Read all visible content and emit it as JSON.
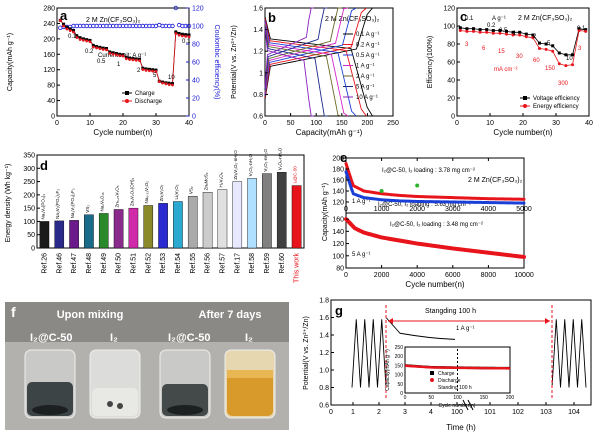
{
  "panels": {
    "a": {
      "letter": "a",
      "title": "2 M Zn(CF₃SO₃)₂",
      "note": "Current unit: A g⁻¹",
      "ylabel": "Capacity(mAh g⁻¹)",
      "y2label": "Coulombic efficiency(%)",
      "xlabel": "Cycle number(n)",
      "rate_labels": [
        "0.1",
        "0.2",
        "0.5",
        "1",
        "2",
        "5",
        "10",
        "0.1"
      ],
      "legend": [
        "Charge",
        "Discharge"
      ]
    },
    "b": {
      "letter": "b",
      "title": "2 M Zn(CF₃SO₃)₂",
      "ylabel": "Potential(V vs. Zn²⁺/Zn)",
      "xlabel": "Capacity(mAh g⁻¹)",
      "legend": [
        "0.1 A g⁻¹",
        "0.2 A g⁻¹",
        "0.5 A g⁻¹",
        "1 A g⁻¹",
        "2 A g⁻¹",
        "5 A g⁻¹",
        "10 A g⁻¹"
      ]
    },
    "c": {
      "letter": "c",
      "title": "2 M Zn(CF₃SO₃)₂",
      "unit_top": "A g⁻¹",
      "unit_bottom": "mA cm⁻²",
      "ylabel": "Efficiency(100%)",
      "xlabel": "Cycle number(n)",
      "legend": [
        "Voltage efficiency",
        "Energy efficiency"
      ]
    },
    "d": {
      "letter": "d",
      "ylabel": "Energy density (Wh kg⁻¹)",
      "this_work": "This work",
      "this_work_bar": "I₂@C-50"
    },
    "e": {
      "letter": "e",
      "title": "2 M Zn(CF₃SO₃)₂",
      "ylabel": "Capacity(mAh g⁻¹)",
      "xlabel": "Cycle number(n)",
      "ann1": "I₂@C-50,  I₂ loading : 3.78 mg cm⁻²",
      "ann2": "I₂@C-50,  I₂ loading : 5.63 mg cm⁻²",
      "ann3": "I₂@C-50,  I₂ loading : 3.48 mg cm⁻²",
      "rate1": "1 A g⁻¹",
      "rate2": "5 A g⁻¹"
    },
    "f": {
      "letter": "f",
      "left_title": "Upon mixing",
      "right_title": "After 7 days",
      "vials": [
        "I₂@C-50",
        "I₂",
        "I₂@C-50",
        "I₂"
      ]
    },
    "g": {
      "letter": "g",
      "ylabel": "Potential(V vs. Zn²⁺/Zn)",
      "xlabel": "Time (h)",
      "standing": "Stangding 100 h",
      "rate": "1 A g⁻¹",
      "inset_ylabel": "Capacity(mAh g⁻¹)",
      "inset_xlabel": "Cycle number(n)",
      "inset_legend": [
        "Charge",
        "Discharge",
        "Standing 100 h"
      ]
    }
  },
  "colors": {
    "charge": "#000000",
    "discharge": "#e8141b",
    "ce": "#1b1bd8",
    "bar": "#1a1a1a",
    "this_work": "#e8141b",
    "blue_scatter": "#1a3fd6",
    "red_scatter": "#e8141b"
  },
  "chart_data": [
    {
      "panel": "a",
      "type": "scatter",
      "title": "",
      "xlabel": "Cycle number(n)",
      "ylabel": "Capacity(mAh g⁻¹)",
      "y2label": "Coulombic efficiency(%)",
      "xlim": [
        0,
        40
      ],
      "ylim": [
        0,
        280
      ],
      "y2lim": [
        0,
        120
      ],
      "xticks": [
        0,
        10,
        20,
        30,
        40
      ],
      "yticks": [
        0,
        40,
        80,
        120,
        160,
        200,
        240,
        280
      ],
      "y2ticks": [
        0,
        20,
        40,
        60,
        80,
        100,
        120
      ],
      "series": [
        {
          "name": "Charge",
          "x": [
            1,
            2,
            3,
            4,
            5,
            6,
            7,
            8,
            9,
            10,
            11,
            12,
            13,
            14,
            15,
            16,
            17,
            18,
            19,
            20,
            21,
            22,
            23,
            24,
            25,
            26,
            27,
            28,
            29,
            30,
            31,
            32,
            33,
            34,
            35,
            36,
            37,
            38,
            39,
            40
          ],
          "values": [
            248,
            238,
            230,
            226,
            222,
            208,
            203,
            200,
            198,
            196,
            183,
            180,
            178,
            176,
            175,
            166,
            164,
            162,
            160,
            159,
            152,
            150,
            149,
            148,
            147,
            124,
            122,
            121,
            120,
            119,
            90,
            88,
            86,
            85,
            84,
            218,
            214,
            212,
            211,
            210
          ]
        },
        {
          "name": "Discharge",
          "x": [
            1,
            2,
            3,
            4,
            5,
            6,
            7,
            8,
            9,
            10,
            11,
            12,
            13,
            14,
            15,
            16,
            17,
            18,
            19,
            20,
            21,
            22,
            23,
            24,
            25,
            26,
            27,
            28,
            29,
            30,
            31,
            32,
            33,
            34,
            35,
            36,
            37,
            38,
            39,
            40
          ],
          "values": [
            250,
            236,
            228,
            224,
            220,
            206,
            201,
            199,
            197,
            195,
            181,
            179,
            177,
            175,
            174,
            165,
            163,
            161,
            159,
            158,
            151,
            149,
            148,
            147,
            146,
            123,
            121,
            120,
            119,
            118,
            92,
            88,
            86,
            84,
            83,
            216,
            212,
            210,
            209,
            208
          ]
        },
        {
          "name": "Coulombic efficiency",
          "axis": "right",
          "x": [
            1,
            2,
            3,
            4,
            5,
            6,
            7,
            8,
            9,
            10,
            11,
            12,
            13,
            14,
            15,
            16,
            17,
            18,
            19,
            20,
            21,
            22,
            23,
            24,
            25,
            26,
            27,
            28,
            29,
            30,
            31,
            32,
            33,
            34,
            35,
            36,
            37,
            38,
            39,
            40
          ],
          "values": [
            98,
            99,
            99,
            99,
            100,
            100,
            100,
            100,
            100,
            100,
            100,
            100,
            100,
            100,
            100,
            100,
            100,
            100,
            100,
            100,
            100,
            100,
            100,
            100,
            100,
            100,
            100,
            100,
            100,
            100,
            101,
            100,
            100,
            100,
            100,
            120,
            101,
            100,
            100,
            100
          ]
        }
      ]
    },
    {
      "panel": "b",
      "type": "line",
      "title": "",
      "xlabel": "Capacity(mAh g⁻¹)",
      "ylabel": "Potential(V vs. Zn²⁺/Zn)",
      "xlim": [
        0,
        250
      ],
      "ylim": [
        0.6,
        1.6
      ],
      "xticks": [
        0,
        50,
        100,
        150,
        200,
        250
      ],
      "yticks": [
        0.6,
        0.8,
        1.0,
        1.2,
        1.4,
        1.6
      ],
      "series": [
        {
          "name": "0.1 A g⁻¹",
          "color": "#000000",
          "capacity": 210
        },
        {
          "name": "0.2 A g⁻¹",
          "color": "#e8141b",
          "capacity": 198
        },
        {
          "name": "0.5 A g⁻¹",
          "color": "#1a3fd6",
          "capacity": 178
        },
        {
          "name": "1 A g⁻¹",
          "color": "#d628c8",
          "capacity": 162
        },
        {
          "name": "2 A g⁻¹",
          "color": "#6a6a2a",
          "capacity": 150
        },
        {
          "name": "5 A g⁻¹",
          "color": "#1d2a8c",
          "capacity": 122
        },
        {
          "name": "10 A g⁻¹",
          "color": "#8a1fbf",
          "capacity": 95
        }
      ]
    },
    {
      "panel": "c",
      "type": "scatter",
      "title": "",
      "xlabel": "Cycle number(n)",
      "ylabel": "Efficiency(100%)",
      "xlim": [
        0,
        40
      ],
      "ylim": [
        0,
        120
      ],
      "xticks": [
        0,
        10,
        20,
        30,
        40
      ],
      "yticks": [
        0,
        20,
        40,
        60,
        80,
        100,
        120
      ],
      "rate_labels_top": [
        "0.1",
        "0.2",
        "0.5",
        "1",
        "2",
        "5",
        "10",
        "0.1"
      ],
      "rate_labels_bottom": [
        "3",
        "6",
        "15",
        "30",
        "60",
        "150",
        "300",
        "3"
      ],
      "series": [
        {
          "name": "Voltage efficiency",
          "x": [
            1,
            3,
            5,
            7,
            9,
            11,
            13,
            15,
            17,
            19,
            21,
            23,
            25,
            27,
            29,
            31,
            33,
            35,
            37,
            39
          ],
          "values": [
            98,
            97,
            97,
            96,
            96,
            95,
            95,
            94,
            93,
            93,
            91,
            90,
            81,
            80,
            78,
            70,
            68,
            68,
            97,
            96
          ]
        },
        {
          "name": "Energy efficiency",
          "x": [
            1,
            3,
            5,
            7,
            9,
            11,
            13,
            15,
            17,
            19,
            21,
            23,
            25,
            27,
            29,
            31,
            33,
            35,
            37,
            39
          ],
          "values": [
            95,
            94,
            94,
            93,
            93,
            92,
            92,
            91,
            90,
            90,
            88,
            87,
            75,
            74,
            72,
            58,
            56,
            57,
            95,
            94
          ]
        }
      ]
    },
    {
      "panel": "d",
      "type": "bar",
      "title": "",
      "ylabel": "Energy density (Wh kg⁻¹)",
      "ylim": [
        0,
        350
      ],
      "yticks": [
        0,
        50,
        100,
        150,
        200,
        250,
        300,
        350
      ],
      "categories": [
        "Ref.26",
        "Ref.46",
        "Ref.47",
        "Ref.48",
        "Ref.49",
        "Ref.50",
        "Ref.51",
        "Ref.52",
        "Ref.53",
        "Ref.54",
        "Ref.55",
        "Ref.56",
        "Ref.57",
        "Ref.17",
        "Ref.58",
        "Ref.59",
        "Ref.60",
        "This work"
      ],
      "bar_labels": [
        "Na₃V₂(PO₄)₃",
        "Na₃V₂(PO₄)₂F₃",
        "Na₃V₂(PO₄)₂F₃",
        "VS₂",
        "Na₂V₆O₁₆",
        "Zn₀.₂₅V₂O₅",
        "Zn₃V₂O₇(OH)₂",
        "Na₀.₃₃V₂O₅",
        "Zn₂V₂O₇",
        "LiₓV₂O₅",
        "VS₂",
        "ZnₓMoS₂",
        "H₂V₃O₈",
        "ZnₓV₂O₅·nH₂O",
        "V₂O₅·nH₂O",
        "V₂O₅·nH₂O",
        "V₂O₅·nH₂O",
        "I₂@C-50"
      ],
      "values": [
        100,
        102,
        104,
        125,
        130,
        145,
        150,
        160,
        168,
        175,
        195,
        210,
        220,
        250,
        262,
        280,
        285,
        235
      ]
    },
    {
      "panel": "e",
      "type": "scatter",
      "title": "",
      "xlabel": "Cycle number(n)",
      "ylabel": "Capacity(mAh g⁻¹)",
      "subplots": [
        {
          "name": "top",
          "xlim": [
            0,
            5000
          ],
          "ylim": [
            100,
            200
          ],
          "xticks": [
            0,
            1000,
            2000,
            3000,
            4000,
            5000
          ],
          "yticks": [
            120,
            140,
            160,
            180,
            200
          ],
          "series": [
            {
              "name": "I₂ loading 3.78 mg cm⁻²",
              "color": "#e8141b",
              "x": [
                0,
                200,
                500,
                1000,
                1500,
                2000,
                3000,
                4000,
                5000
              ],
              "values": [
                190,
                150,
                140,
                135,
                132,
                130,
                128,
                126,
                125
              ]
            },
            {
              "name": "I₂ loading 5.63 mg cm⁻²",
              "color": "#1a3fd6",
              "x": [
                0,
                200,
                500,
                1000,
                1500,
                2000,
                3000,
                4000,
                5000
              ],
              "values": [
                175,
                135,
                128,
                124,
                122,
                121,
                120,
                119,
                118
              ]
            }
          ]
        },
        {
          "name": "bottom",
          "xlim": [
            0,
            10000
          ],
          "ylim": [
            80,
            170
          ],
          "xticks": [
            0,
            2000,
            4000,
            6000,
            8000,
            10000
          ],
          "yticks": [
            80,
            100,
            120,
            140,
            160
          ],
          "series": [
            {
              "name": "I₂ loading 3.48 mg cm⁻²",
              "color": "#e8141b",
              "x": [
                0,
                500,
                1000,
                2000,
                4000,
                6000,
                8000,
                10000
              ],
              "values": [
                160,
                145,
                138,
                130,
                120,
                112,
                105,
                98
              ]
            }
          ]
        }
      ]
    },
    {
      "panel": "g",
      "type": "line",
      "title": "",
      "xlabel": "Time (h)",
      "ylabel": "Potential(V vs. Zn²⁺/Zn)",
      "ylim": [
        0.6,
        1.8
      ],
      "yticks": [
        0.6,
        0.8,
        1.0,
        1.2,
        1.4,
        1.6,
        1.8
      ],
      "xticks": [
        "0",
        "1",
        "2",
        "3",
        "4",
        "100",
        "101",
        "102",
        "103",
        "104"
      ],
      "series": [
        {
          "name": "Voltage profile",
          "x": [
            1.7,
            2.9
          ],
          "range": [
            0.8,
            1.6
          ]
        },
        {
          "name": "Rest voltage",
          "x": [
            3.0,
            102.6
          ],
          "values": [
            1.6,
            1.6
          ]
        }
      ],
      "inset": {
        "xlim": [
          0,
          200
        ],
        "ylim": [
          0,
          250
        ],
        "xticks": [
          0,
          50,
          100,
          150,
          200
        ],
        "yticks": [
          0,
          50,
          100,
          150,
          200,
          250
        ],
        "series": [
          {
            "name": "Charge",
            "x": [
              0,
              50,
              100,
              150,
              200
            ],
            "values": [
              150,
              140,
              138,
              136,
              135
            ]
          },
          {
            "name": "Discharge",
            "x": [
              0,
              50,
              100,
              150,
              200
            ],
            "values": [
              148,
              139,
              137,
              135,
              134
            ]
          }
        ]
      }
    }
  ]
}
